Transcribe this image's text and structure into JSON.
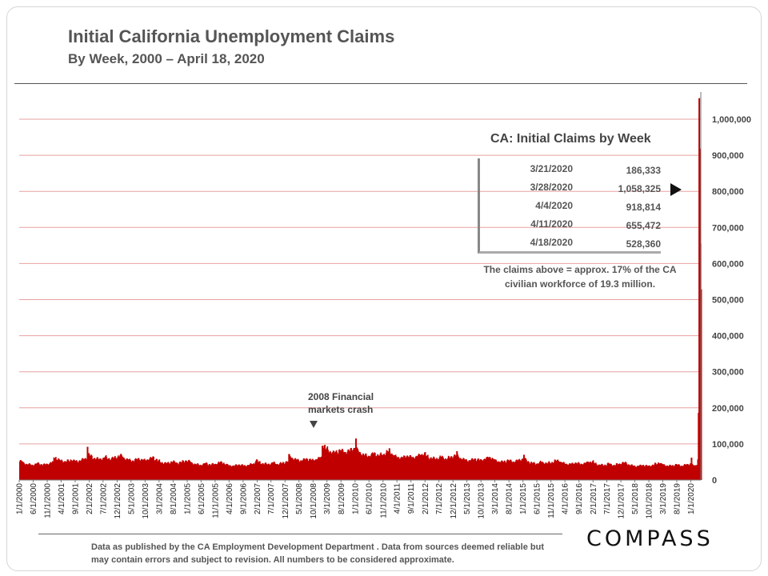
{
  "header": {
    "title": "Initial California Unemployment Claims",
    "subtitle": "By Week, 2000 – April 18, 2020"
  },
  "table": {
    "title": "CA: Initial Claims by Week",
    "rows": [
      {
        "date": "3/21/2020",
        "value": "186,333"
      },
      {
        "date": "3/28/2020",
        "value": "1,058,325"
      },
      {
        "date": "4/4/2020",
        "value": "918,814"
      },
      {
        "date": "4/11/2020",
        "value": "655,472"
      },
      {
        "date": "4/18/2020",
        "value": "528,360"
      }
    ],
    "note": "The claims above = approx. 17% of the CA civilian workforce of 19.3 million."
  },
  "annotation": {
    "line1": "2008 Financial",
    "line2": "markets crash"
  },
  "footer": {
    "source": "Data as published by the CA Employment Development Department . Data from sources deemed reliable but may contain errors and subject to revision. All numbers to be considered approximate.",
    "logo": "COMPASS"
  },
  "colors": {
    "bar": "#c00000",
    "grid": "#e8a0a0",
    "axis": "#777777"
  },
  "chart_data": {
    "type": "bar",
    "title": "Initial California Unemployment Claims",
    "subtitle": "By Week, 2000 – April 18, 2020",
    "x_range": [
      "1/1/2000",
      "4/18/2020"
    ],
    "ylim": [
      0,
      1000000
    ],
    "y_axis_position": "right",
    "grid": true,
    "yticks": [
      0,
      100000,
      200000,
      300000,
      400000,
      500000,
      600000,
      700000,
      800000,
      900000,
      1000000
    ],
    "ytick_labels": [
      "0",
      "100,000",
      "200,000",
      "300,000",
      "400,000",
      "500,000",
      "600,000",
      "700,000",
      "800,000",
      "900,000",
      "1,000,000"
    ],
    "xtick_labels": [
      "1/1/2000",
      "6/1/2000",
      "11/1/2000",
      "4/1/2001",
      "9/1/2001",
      "2/1/2002",
      "7/1/2002",
      "12/1/2002",
      "5/1/2003",
      "10/1/2003",
      "3/1/2004",
      "8/1/2004",
      "1/1/2005",
      "6/1/2005",
      "11/1/2005",
      "4/1/2006",
      "9/1/2006",
      "2/1/2007",
      "7/1/2007",
      "12/1/2007",
      "5/1/2008",
      "10/1/2008",
      "3/1/2009",
      "8/1/2009",
      "1/1/2010",
      "6/1/2010",
      "11/1/2010",
      "4/1/2011",
      "9/1/2011",
      "2/1/2012",
      "7/1/2012",
      "12/1/2012",
      "5/1/2013",
      "10/1/2013",
      "3/1/2014",
      "8/1/2014",
      "1/1/2015",
      "6/1/2015",
      "11/1/2015",
      "4/1/2016",
      "9/1/2016",
      "2/1/2017",
      "7/1/2017",
      "12/1/2017",
      "5/1/2018",
      "10/1/2018",
      "3/1/2019",
      "8/1/2019",
      "1/1/2020"
    ],
    "series": [
      {
        "name": "",
        "annual_approx": {
          "2000": 45000,
          "2001": 55000,
          "2002": 62000,
          "2003": 58000,
          "2004": 50000,
          "2005": 45000,
          "2006": 42000,
          "2007": 47000,
          "2008": 58000,
          "2009": 82000,
          "2010": 72000,
          "2011": 66000,
          "2012": 63000,
          "2013": 58000,
          "2014": 54000,
          "2015": 49000,
          "2016": 47000,
          "2017": 44000,
          "2018": 41000,
          "2019": 42000
        },
        "weekly_2020": [
          {
            "date": "1/4/2020",
            "value": 62000
          },
          {
            "date": "1/11/2020",
            "value": 45000
          },
          {
            "date": "1/18/2020",
            "value": 42000
          },
          {
            "date": "1/25/2020",
            "value": 41000
          },
          {
            "date": "2/1/2020",
            "value": 40000
          },
          {
            "date": "2/8/2020",
            "value": 40000
          },
          {
            "date": "2/15/2020",
            "value": 41000
          },
          {
            "date": "2/22/2020",
            "value": 40000
          },
          {
            "date": "2/29/2020",
            "value": 41000
          },
          {
            "date": "3/7/2020",
            "value": 42000
          },
          {
            "date": "3/14/2020",
            "value": 57000
          },
          {
            "date": "3/21/2020",
            "value": 186333
          },
          {
            "date": "3/28/2020",
            "value": 1058325
          },
          {
            "date": "4/4/2020",
            "value": 918814
          },
          {
            "date": "4/11/2020",
            "value": 655472
          },
          {
            "date": "4/18/2020",
            "value": 528360
          }
        ],
        "spikes": [
          {
            "date": "1/5/2002",
            "value": 92000
          },
          {
            "date": "1/3/2009",
            "value": 95000
          },
          {
            "date": "1/2/2010",
            "value": 115000
          },
          {
            "date": "1/1/2011",
            "value": 88000
          },
          {
            "date": "1/5/2013",
            "value": 80000
          },
          {
            "date": "1/3/2015",
            "value": 70000
          }
        ]
      }
    ]
  }
}
